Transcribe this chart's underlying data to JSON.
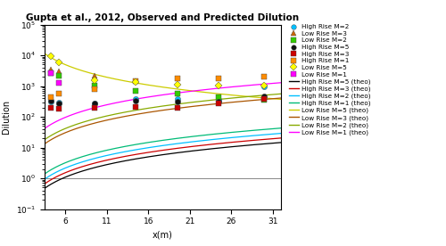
{
  "title": "Gupta et al., 2012, Observed and Predicted Dilution",
  "xlabel": "x(m)",
  "ylabel": "Dilution",
  "xlim": [
    3.5,
    32
  ],
  "ylim": [
    0.1,
    100000
  ],
  "xticks": [
    6,
    11,
    16,
    21,
    26,
    31
  ],
  "obs": {
    "High Rise M=2": {
      "x": [
        4.2,
        5.2,
        9.5,
        14.5,
        19.5,
        24.5,
        30
      ],
      "y": [
        310,
        290,
        270,
        370,
        370,
        360,
        950
      ],
      "color": "#00BFFF",
      "marker": "o"
    },
    "Low Rise M=3": {
      "x": [
        4.2,
        5.2,
        9.5
      ],
      "y": [
        3500,
        3000,
        2200
      ],
      "color": "#CC6600",
      "marker": "^"
    },
    "Low Rise M=2": {
      "x": [
        4.2,
        5.2,
        9.5,
        14.5,
        19.5,
        24.5,
        30
      ],
      "y": [
        2700,
        2200,
        1050,
        700,
        590,
        450,
        360
      ],
      "color": "#33CC00",
      "marker": "s"
    },
    "High Rise M=5": {
      "x": [
        4.2,
        5.2,
        9.5,
        14.5,
        19.5,
        24.5,
        30
      ],
      "y": [
        330,
        275,
        270,
        330,
        320,
        320,
        480
      ],
      "color": "#111111",
      "marker": "o"
    },
    "High Rise M=3": {
      "x": [
        4.2,
        5.2,
        9.5,
        14.5,
        19.5,
        24.5,
        30
      ],
      "y": [
        200,
        185,
        200,
        205,
        200,
        280,
        390
      ],
      "color": "#CC0000",
      "marker": "s"
    },
    "High Rise M=1": {
      "x": [
        4.2,
        5.2,
        9.5,
        14.5,
        19.5,
        24.5,
        30
      ],
      "y": [
        440,
        570,
        820,
        1430,
        1820,
        1720,
        2050
      ],
      "color": "#FF8C00",
      "marker": "s"
    },
    "Low Rise M=5": {
      "x": [
        4.2,
        5.2,
        9.5,
        14.5,
        19.5,
        24.5,
        30
      ],
      "y": [
        9500,
        5800,
        1550,
        1330,
        1130,
        1060,
        1010
      ],
      "color": "#FFFF00",
      "marker": "D"
    },
    "Low Rise M=1": {
      "x": [
        4.2,
        5.2
      ],
      "y": [
        2600,
        1250
      ],
      "color": "#FF00FF",
      "marker": "s"
    }
  },
  "theo": {
    "High Rise M=5 (theo)": {
      "color": "#000000",
      "type": "power",
      "a": 0.068,
      "b": 1.55
    },
    "High Rise M=3 (theo)": {
      "color": "#CC0000",
      "type": "power",
      "a": 0.095,
      "b": 1.55
    },
    "High Rise M=2 (theo)": {
      "color": "#00BFFF",
      "type": "power",
      "a": 0.135,
      "b": 1.55
    },
    "High Rise M=1 (theo)": {
      "color": "#00BB77",
      "type": "power",
      "a": 0.2,
      "b": 1.55
    },
    "Low Rise M=5 (theo)": {
      "color": "#CCCC00",
      "type": "decay",
      "a": 80000,
      "b": -1.55
    },
    "Low Rise M=3 (theo)": {
      "color": "#AA5500",
      "type": "power",
      "a": 1.9,
      "b": 1.55
    },
    "Low Rise M=2 (theo)": {
      "color": "#88AA00",
      "type": "power",
      "a": 2.6,
      "b": 1.55
    },
    "Low Rise M=1 (theo)": {
      "color": "#FF00FF",
      "type": "power",
      "a": 6.0,
      "b": 1.55
    }
  },
  "obs_order": [
    "High Rise M=2",
    "Low Rise M=3",
    "Low Rise M=2",
    "High Rise M=5",
    "High Rise M=3",
    "High Rise M=1",
    "Low Rise M=5",
    "Low Rise M=1"
  ],
  "theo_order": [
    "High Rise M=5 (theo)",
    "High Rise M=3 (theo)",
    "High Rise M=2 (theo)",
    "High Rise M=1 (theo)",
    "Low Rise M=5 (theo)",
    "Low Rise M=3 (theo)",
    "Low Rise M=2 (theo)",
    "Low Rise M=1 (theo)"
  ]
}
